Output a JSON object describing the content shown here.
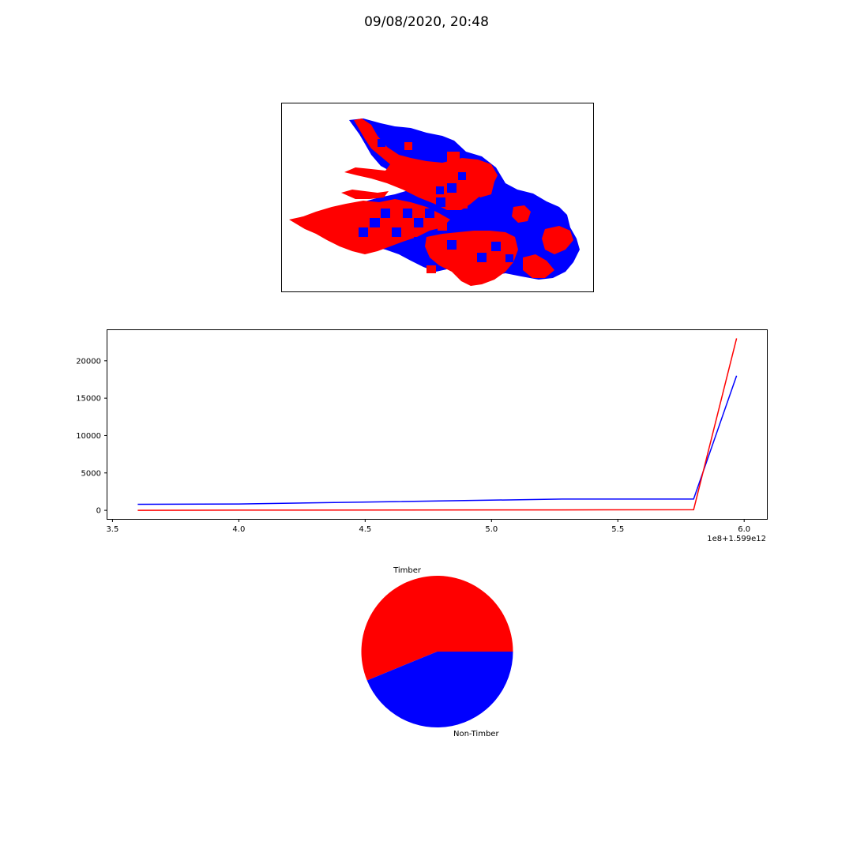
{
  "figure": {
    "title": "09/08/2020, 20:48"
  },
  "colors": {
    "timber": "#ff0000",
    "non_timber": "#0000ff",
    "axes": "#000000",
    "background": "#ffffff"
  },
  "map": {
    "description_type": "perimeter-map",
    "series": [
      "Timber",
      "Non-Timber"
    ]
  },
  "chart_data": [
    {
      "type": "line",
      "xlim": [
        3.48,
        6.09
      ],
      "ylim": [
        -1150,
        24100
      ],
      "x_offset_label": "1e8+1.599e12",
      "x_ticks": [
        {
          "value": 3.5,
          "label": "3.5"
        },
        {
          "value": 4.0,
          "label": "4.0"
        },
        {
          "value": 4.5,
          "label": "4.5"
        },
        {
          "value": 5.0,
          "label": "5.0"
        },
        {
          "value": 5.5,
          "label": "5.5"
        },
        {
          "value": 6.0,
          "label": "6.0"
        }
      ],
      "y_ticks": [
        {
          "value": 0,
          "label": "0"
        },
        {
          "value": 5000,
          "label": "5000"
        },
        {
          "value": 10000,
          "label": "10000"
        },
        {
          "value": 15000,
          "label": "15000"
        },
        {
          "value": 20000,
          "label": "20000"
        }
      ],
      "grid": false,
      "series": [
        {
          "color": "#0000ff",
          "x": [
            3.6,
            4.0,
            5.28,
            5.8,
            5.97
          ],
          "y": [
            800,
            850,
            1500,
            1500,
            18000
          ]
        },
        {
          "color": "#ff0000",
          "x": [
            3.6,
            4.0,
            5.28,
            5.8,
            5.97
          ],
          "y": [
            0,
            20,
            50,
            80,
            23000
          ]
        }
      ]
    },
    {
      "type": "pie",
      "labels": [
        "Timber",
        "Non-Timber"
      ],
      "values": [
        56.2,
        43.8
      ],
      "colors": [
        "#ff0000",
        "#0000ff"
      ],
      "start_angle_deg": 0
    }
  ]
}
